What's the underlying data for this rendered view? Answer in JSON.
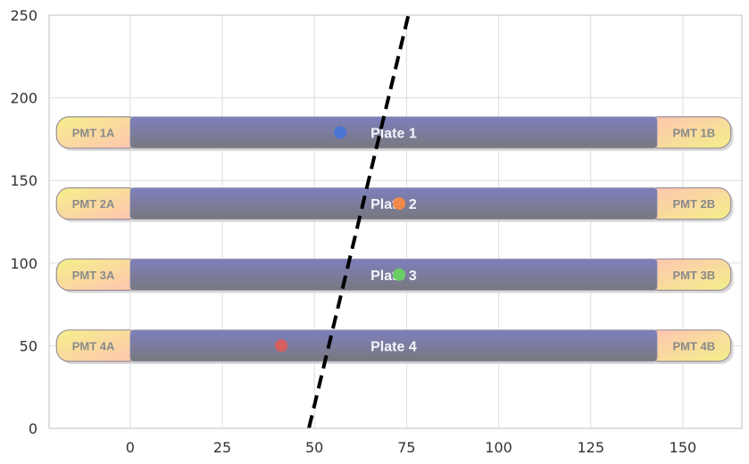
{
  "chart_data": {
    "type": "scatter",
    "xlim": [
      -22,
      166
    ],
    "ylim": [
      0,
      250
    ],
    "x_ticks": [
      0,
      25,
      50,
      75,
      100,
      125,
      150
    ],
    "y_ticks": [
      0,
      50,
      100,
      150,
      200,
      250
    ],
    "grid": true,
    "plates": [
      {
        "label": "Plate 1",
        "y": 179,
        "x_start": 0,
        "x_end": 143,
        "pmt_left": "PMT 1A",
        "pmt_right": "PMT 1B"
      },
      {
        "label": "Plate 2",
        "y": 136,
        "x_start": 0,
        "x_end": 143,
        "pmt_left": "PMT 2A",
        "pmt_right": "PMT 2B"
      },
      {
        "label": "Plate 3",
        "y": 93,
        "x_start": 0,
        "x_end": 143,
        "pmt_left": "PMT 3A",
        "pmt_right": "PMT 3B"
      },
      {
        "label": "Plate 4",
        "y": 50,
        "x_start": 0,
        "x_end": 143,
        "pmt_left": "PMT 4A",
        "pmt_right": "PMT 4B"
      }
    ],
    "pmt_x_ranges": {
      "left": [
        -20,
        0
      ],
      "right": [
        143,
        163
      ]
    },
    "plate_half_height": 9.5,
    "points": [
      {
        "x": 57,
        "y": 179,
        "color": "#4a76d1"
      },
      {
        "x": 73,
        "y": 136,
        "color": "#f0894a"
      },
      {
        "x": 73,
        "y": 93,
        "color": "#6acc64"
      },
      {
        "x": 41,
        "y": 50,
        "color": "#d65f5f"
      }
    ],
    "track_line": {
      "x": [
        48.5,
        75.5
      ],
      "y": [
        0,
        250
      ],
      "color": "#000000",
      "style": "dashed"
    }
  }
}
